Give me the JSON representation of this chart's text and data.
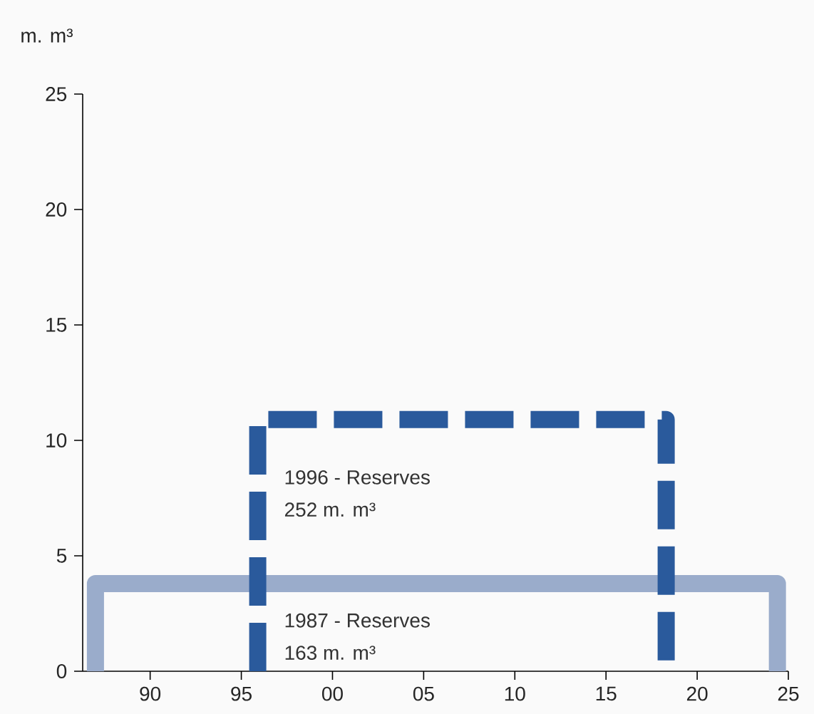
{
  "chart_data": {
    "type": "line",
    "ylabel": "m. m³",
    "xlim": [
      1986.3,
      2025
    ],
    "ylim": [
      0,
      25
    ],
    "xticks": [
      {
        "value": 1990,
        "label": "90"
      },
      {
        "value": 1995,
        "label": "95"
      },
      {
        "value": 2000,
        "label": "00"
      },
      {
        "value": 2005,
        "label": "05"
      },
      {
        "value": 2010,
        "label": "10"
      },
      {
        "value": 2015,
        "label": "15"
      },
      {
        "value": 2020,
        "label": "20"
      },
      {
        "value": 2025,
        "label": "25"
      }
    ],
    "yticks": [
      0,
      5,
      10,
      15,
      20,
      25
    ],
    "grid": false,
    "marker": "none",
    "series": [
      {
        "color": "#9aaccb",
        "line_style": "solid",
        "x": [
          1987,
          1987,
          2024.4,
          2024.4
        ],
        "values": [
          0,
          3.8,
          3.8,
          0
        ]
      },
      {
        "color": "#2a5a9c",
        "line_style": "dashed",
        "x": [
          1995.9,
          1995.9,
          2018.3,
          2018.3
        ],
        "values": [
          0,
          10.9,
          10.9,
          0
        ]
      }
    ],
    "annotations": [
      "1996 - Reserves",
      "252 m. m³",
      "1987 - Reserves",
      "163 m. m³"
    ]
  }
}
